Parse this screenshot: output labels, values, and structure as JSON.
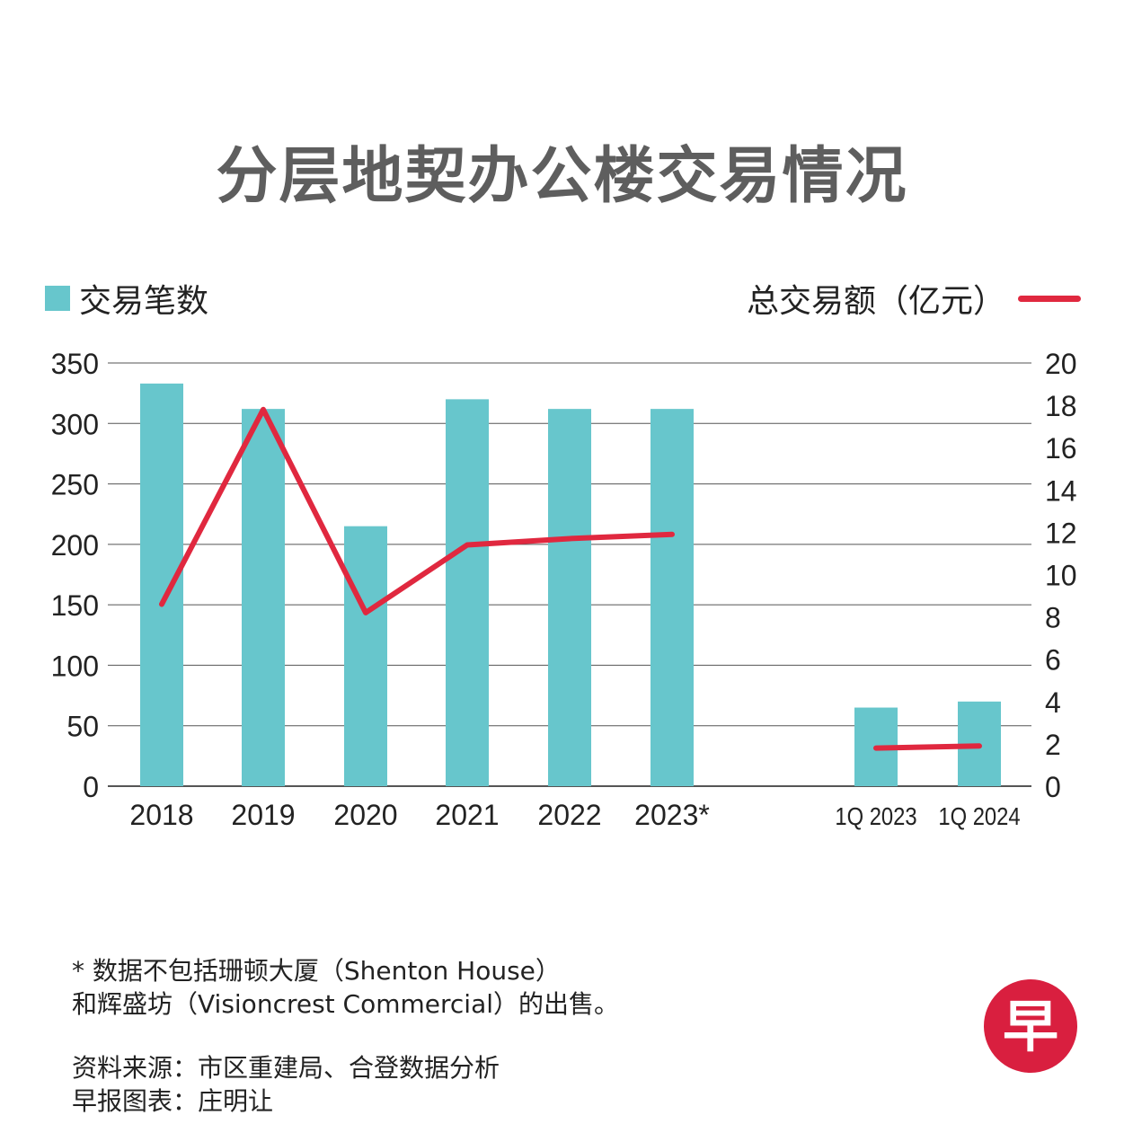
{
  "title": "分层地契办公楼交易情况",
  "legend": {
    "bars_label": "交易笔数",
    "line_label": "总交易额（亿元）"
  },
  "colors": {
    "bar": "#67c6cc",
    "line": "#e0283f",
    "title": "#5e5e5e",
    "grid": "#555555",
    "logo": "#d91f3f"
  },
  "chart_data": {
    "type": "bar",
    "categories": [
      "2018",
      "2019",
      "2020",
      "2021",
      "2022",
      "2023*",
      "1Q 2023",
      "1Q 2024"
    ],
    "series": [
      {
        "name": "交易笔数",
        "type": "bar",
        "axis": "left",
        "values": [
          333,
          312,
          215,
          320,
          312,
          312,
          65,
          70
        ]
      },
      {
        "name": "总交易额（亿元）",
        "type": "line",
        "axis": "right",
        "values": [
          8.6,
          17.8,
          8.2,
          11.4,
          11.7,
          11.9,
          1.8,
          1.9
        ]
      }
    ],
    "ylim_left": [
      0,
      350
    ],
    "yticks_left": [
      0,
      50,
      100,
      150,
      200,
      250,
      300,
      350
    ],
    "ylim_right": [
      0,
      20
    ],
    "yticks_right": [
      0,
      2,
      4,
      6,
      8,
      10,
      12,
      14,
      16,
      18,
      20
    ],
    "line_segments": [
      [
        0,
        5
      ],
      [
        6,
        7
      ]
    ],
    "grid": true
  },
  "footnote": {
    "line1": "* 数据不包括珊顿大厦（Shenton House）",
    "line2": "和辉盛坊（Visioncrest Commercial）的出售。"
  },
  "source": {
    "line1": "资料来源：市区重建局、合登数据分析",
    "line2": "早报图表：庄明让"
  },
  "logo_char": "早"
}
